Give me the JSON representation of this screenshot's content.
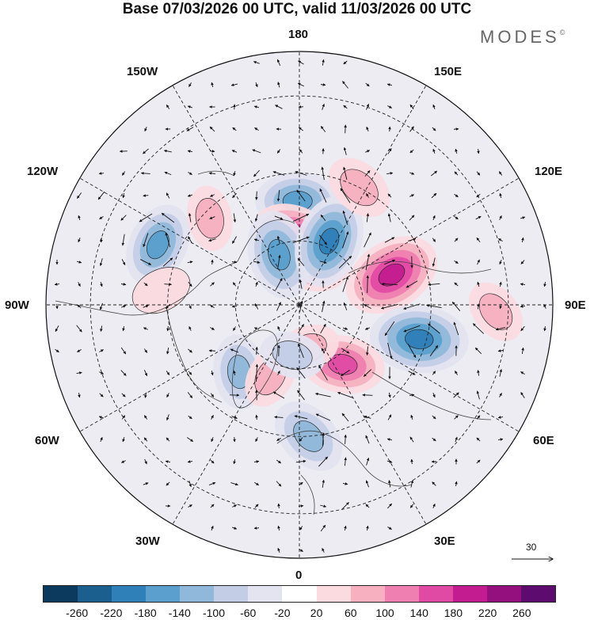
{
  "title": "Base 07/03/2026 00 UTC, valid 11/03/2026 00 UTC",
  "brand": {
    "name": "MODES",
    "mark": "©"
  },
  "longitude_labels": {
    "top": "180",
    "bottom": "0",
    "left": "90W",
    "right": "90E",
    "upper_left_1": "150W",
    "upper_left_2": "120W",
    "upper_right_1": "150E",
    "upper_right_2": "120E",
    "lower_left_1": "60W",
    "lower_left_2": "30W",
    "lower_right_1": "60E",
    "lower_right_2": "30E"
  },
  "reference_vector": {
    "label": "30"
  },
  "colorbar": {
    "colors": [
      "#0b3a5e",
      "#1b5f8f",
      "#2f7fb8",
      "#5a9fce",
      "#90b8da",
      "#c3cde6",
      "#e4e4f0",
      "#ffffff",
      "#fbdbe0",
      "#f6b0c0",
      "#ef7fb0",
      "#e14aa4",
      "#c31c90",
      "#93107e",
      "#5d0b6e"
    ],
    "ticks": [
      "-260",
      "-220",
      "-180",
      "-140",
      "-100",
      "-60",
      "-20",
      "20",
      "60",
      "100",
      "140",
      "180",
      "220",
      "260"
    ]
  },
  "anomalies": [
    {
      "type": "neg",
      "value": -140,
      "lon": -179,
      "lat": 58
    },
    {
      "type": "pos",
      "value": 240,
      "lon": 178,
      "lat": 72
    },
    {
      "type": "neg",
      "value": -160,
      "lon": -158,
      "lat": 73
    },
    {
      "type": "neg",
      "value": -180,
      "lon": 155,
      "lat": 68
    },
    {
      "type": "pos",
      "value": 200,
      "lon": 108,
      "lat": 60
    },
    {
      "type": "neg",
      "value": -200,
      "lon": 74,
      "lat": 52
    },
    {
      "type": "pos",
      "value": 80,
      "lon": 153,
      "lat": 50
    },
    {
      "type": "pos",
      "value": 60,
      "lon": -134,
      "lat": 52
    },
    {
      "type": "neg",
      "value": -140,
      "lon": -113,
      "lat": 44
    },
    {
      "type": "pos",
      "value": 40,
      "lon": -96,
      "lat": 48
    },
    {
      "type": "pos",
      "value": 140,
      "lon": 36,
      "lat": 67
    },
    {
      "type": "neg",
      "value": -120,
      "lon": 4,
      "lat": 50
    },
    {
      "type": "neg",
      "value": -100,
      "lon": -42,
      "lat": 62
    },
    {
      "type": "pos",
      "value": 60,
      "lon": -22,
      "lat": 66
    },
    {
      "type": "pos",
      "value": 60,
      "lon": 10,
      "lat": 76
    },
    {
      "type": "neg",
      "value": -60,
      "lon": -8,
      "lat": 74
    },
    {
      "type": "pos",
      "value": 60,
      "lon": 88,
      "lat": 33
    }
  ]
}
